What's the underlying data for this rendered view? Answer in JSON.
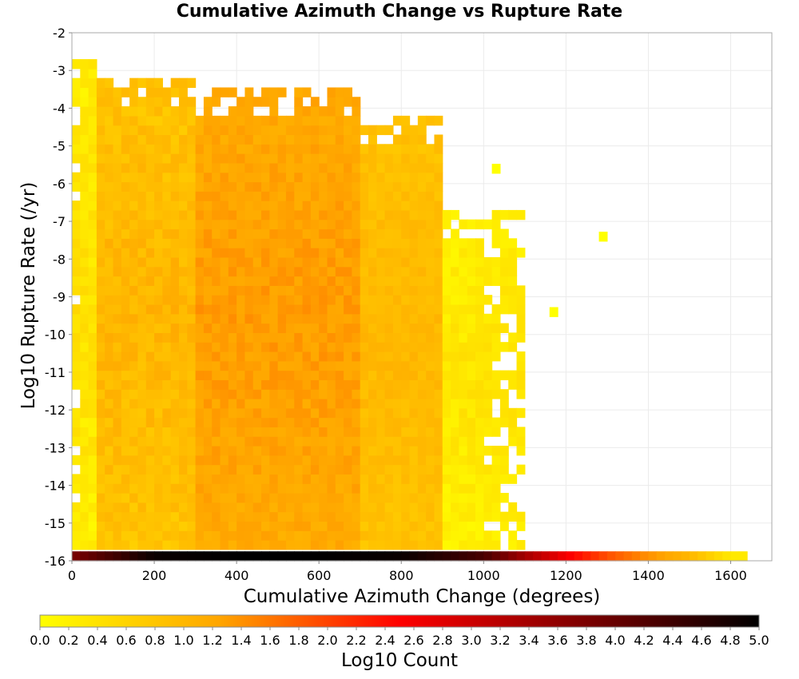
{
  "chart_data": {
    "type": "heatmap",
    "title": "Cumulative Azimuth Change vs Rupture Rate",
    "xlabel": "Cumulative Azimuth Change (degrees)",
    "ylabel": "Log10 Rupture Rate (/yr)",
    "xlim": [
      0,
      1700
    ],
    "ylim": [
      -16,
      -2
    ],
    "x_ticks": [
      "0",
      "200",
      "400",
      "600",
      "800",
      "1000",
      "1200",
      "1400",
      "1600"
    ],
    "y_ticks": [
      "-2",
      "-3",
      "-4",
      "-5",
      "-6",
      "-7",
      "-8",
      "-9",
      "-10",
      "-11",
      "-12",
      "-13",
      "-14",
      "-15",
      "-16"
    ],
    "grid": true,
    "bin_width_x": 20,
    "bin_height_y": 0.25,
    "colorbar": {
      "label": "Log10 Count",
      "range": [
        0.0,
        5.0
      ],
      "ticks": [
        "0.0",
        "0.2",
        "0.4",
        "0.6",
        "0.8",
        "1.0",
        "1.2",
        "1.4",
        "1.6",
        "1.8",
        "2.0",
        "2.2",
        "2.4",
        "2.6",
        "2.8",
        "3.0",
        "3.2",
        "3.4",
        "3.6",
        "3.8",
        "4.0",
        "4.2",
        "4.4",
        "4.6",
        "4.8",
        "5.0"
      ],
      "colors": [
        "#ffff00",
        "#ffa500",
        "#ff0000",
        "#800000",
        "#000000"
      ]
    },
    "density_profile": [
      {
        "x_range": [
          0,
          60
        ],
        "log10_rate_range": [
          -15.7,
          -2.7
        ],
        "log10_count": [
          0.0,
          0.6
        ]
      },
      {
        "x_range": [
          60,
          300
        ],
        "log10_rate_range": [
          -15.7,
          -3.3
        ],
        "log10_count": [
          0.6,
          1.2
        ]
      },
      {
        "x_range": [
          300,
          700
        ],
        "log10_rate_range": [
          -15.7,
          -3.6
        ],
        "log10_count": [
          1.0,
          1.45
        ]
      },
      {
        "x_range": [
          700,
          900
        ],
        "log10_rate_range": [
          -15.7,
          -4.3
        ],
        "log10_count": [
          0.7,
          1.1
        ]
      },
      {
        "x_range": [
          900,
          1100
        ],
        "log10_rate_range": [
          -15.7,
          -6.8
        ],
        "log10_count": [
          0.0,
          0.5
        ]
      }
    ],
    "outlier_cells": [
      {
        "x": 1290,
        "log10_rate": -7.4,
        "log10_count": 0.0
      },
      {
        "x": 1170,
        "log10_rate": -9.4,
        "log10_count": 0.0
      },
      {
        "x": 1030,
        "log10_rate": -5.6,
        "log10_count": 0.0
      }
    ],
    "bottom_row": {
      "log10_rate": -15.9,
      "x": [
        0,
        200,
        400,
        600,
        800,
        1000,
        1100,
        1200,
        1300,
        1400,
        1500,
        1600
      ],
      "log10_count": [
        3.8,
        4.9,
        5.0,
        5.0,
        4.9,
        4.3,
        3.4,
        2.6,
        1.9,
        1.4,
        1.0,
        0.3
      ]
    }
  }
}
